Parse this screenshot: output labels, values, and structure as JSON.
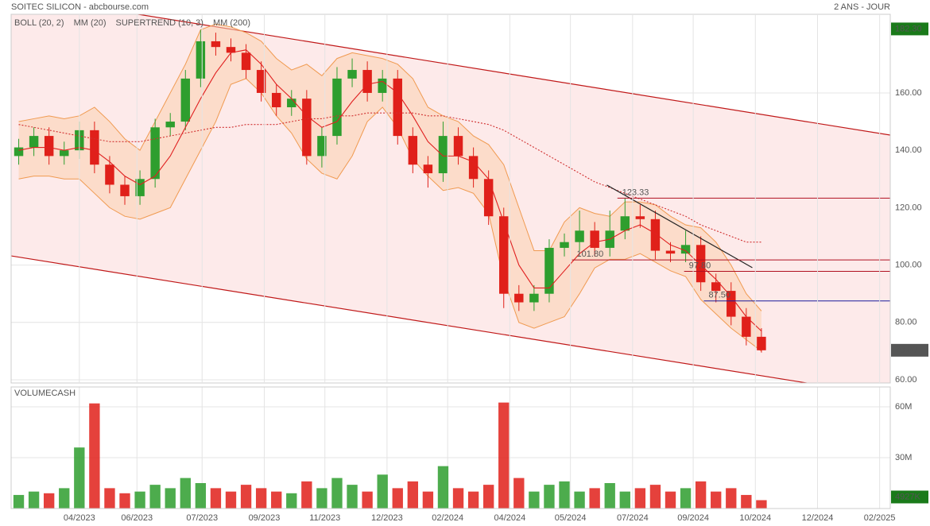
{
  "header": {
    "title": "SOITEC SILICON - abcbourse.com",
    "period": "2 ANS - JOUR"
  },
  "chart_data": [
    {
      "type": "candlestick",
      "up_color": "#2e9e2e",
      "down_color": "#e0201a",
      "x": [
        0,
        1,
        2,
        3,
        4,
        5,
        6,
        7,
        8,
        9,
        10,
        11,
        12,
        13,
        14,
        15,
        16,
        17,
        18,
        19,
        20,
        21,
        22,
        23,
        24,
        25,
        26,
        27,
        28,
        29,
        30,
        31,
        32,
        33,
        34,
        35,
        36,
        37,
        38,
        39,
        40,
        41,
        42,
        43,
        44,
        45,
        46,
        47,
        48,
        49
      ],
      "open": [
        138,
        141,
        145,
        138,
        140,
        147,
        135,
        128,
        124,
        130,
        148,
        150,
        165,
        178,
        176,
        174,
        168,
        160,
        155,
        158,
        138,
        145,
        165,
        168,
        160,
        165,
        145,
        135,
        132,
        145,
        138,
        130,
        117,
        90,
        87,
        90,
        106,
        108,
        112,
        106,
        112,
        117,
        116,
        105,
        104,
        107,
        94,
        91,
        82,
        75
      ],
      "high": [
        144,
        148,
        148,
        143,
        150,
        150,
        138,
        131,
        133,
        151,
        153,
        168,
        182,
        181,
        179,
        177,
        171,
        163,
        161,
        161,
        148,
        169,
        172,
        171,
        168,
        168,
        148,
        138,
        150,
        148,
        141,
        133,
        120,
        93,
        93,
        109,
        111,
        119,
        115,
        119,
        123.33,
        121,
        119,
        108,
        112,
        110,
        97,
        94,
        85,
        78
      ],
      "low": [
        135,
        138,
        135,
        135,
        137,
        132,
        125,
        121,
        121,
        127,
        145,
        147,
        162,
        173,
        171,
        165,
        157,
        152,
        152,
        135,
        134,
        142,
        162,
        157,
        157,
        142,
        132,
        127,
        129,
        135,
        127,
        114,
        85,
        84,
        84,
        87,
        103,
        105,
        103,
        103,
        109,
        113,
        102,
        101,
        101,
        91,
        87,
        79,
        72,
        69.5
      ],
      "close": [
        141,
        145,
        138,
        140,
        147,
        135,
        128,
        124,
        130,
        148,
        150,
        165,
        178,
        176,
        174,
        168,
        160,
        155,
        158,
        138,
        145,
        165,
        168,
        160,
        165,
        145,
        135,
        132,
        145,
        138,
        130,
        117,
        90,
        87,
        90,
        106,
        108,
        112,
        106,
        112,
        117,
        116,
        105,
        104,
        107,
        94,
        91,
        82,
        75,
        70.3
      ],
      "overlays": [
        {
          "name": "BOLL (20, 2)",
          "color": "#f09a50",
          "upper": [
            150,
            151,
            152,
            151,
            152,
            155,
            150,
            144,
            140,
            150,
            160,
            170,
            182,
            184,
            183,
            181,
            178,
            172,
            168,
            170,
            166,
            172,
            174,
            173,
            172,
            170,
            165,
            155,
            152,
            150,
            145,
            142,
            135,
            120,
            105,
            105,
            115,
            120,
            118,
            117,
            122,
            122,
            121,
            117,
            114,
            113,
            108,
            100,
            90,
            84
          ],
          "lower": [
            130,
            131,
            131,
            130,
            130,
            125,
            120,
            117,
            116,
            118,
            120,
            130,
            140,
            150,
            163,
            165,
            160,
            152,
            146,
            137,
            132,
            130,
            138,
            150,
            155,
            148,
            137,
            131,
            126,
            127,
            125,
            118,
            95,
            80,
            78,
            80,
            82,
            90,
            99,
            102,
            102,
            104,
            101,
            98,
            96,
            88,
            83,
            78,
            74,
            70
          ]
        },
        {
          "name": "MM (20)",
          "color": "#e02020",
          "values": [
            140,
            141,
            141,
            140,
            141,
            140,
            136,
            131,
            128,
            131,
            138,
            148,
            158,
            167,
            174,
            175,
            170,
            163,
            158,
            152,
            148,
            150,
            157,
            163,
            164,
            160,
            152,
            143,
            138,
            138,
            136,
            130,
            115,
            100,
            92,
            92,
            98,
            104,
            108,
            109,
            112,
            114,
            111,
            107,
            105,
            100,
            95,
            89,
            82,
            77
          ]
        },
        {
          "name": "SUPERTREND (10, 3)",
          "color": "#f4b8b0"
        },
        {
          "name": "MM (200)",
          "color": "#d03030",
          "dashed": true,
          "values": [
            149,
            148,
            147,
            146,
            145,
            144,
            143,
            143,
            143,
            144,
            145,
            146,
            147,
            148,
            148,
            149,
            149,
            149,
            150,
            151,
            151,
            152,
            152,
            153,
            153,
            153,
            153,
            152,
            152,
            151,
            150,
            149,
            147,
            144,
            141,
            138,
            135,
            132,
            129,
            127,
            125,
            123,
            121,
            119,
            117,
            114,
            112,
            110,
            108,
            108
          ]
        }
      ],
      "channel": {
        "color": "#c01818",
        "upper": [
          [
            8.47,
            186.9
          ],
          [
            57.5,
            145.3
          ]
        ],
        "lower": [
          [
            -0.5,
            103.2
          ],
          [
            52,
            58.9
          ]
        ]
      },
      "trendline": {
        "color": "#222222",
        "points": [
          [
            38.8,
            127.9
          ],
          [
            48.4,
            99.1
          ]
        ]
      },
      "levels": [
        {
          "value": 123.33,
          "label": "123.33",
          "from": 39.5,
          "color": "#b01020"
        },
        {
          "value": 101.8,
          "label": "101.80",
          "from": 36.5,
          "color": "#b01020"
        },
        {
          "value": 97.8,
          "label": "97.80",
          "from": 43.9,
          "color": "#b01020"
        },
        {
          "value": 87.5,
          "label": "87.50",
          "from": 45.2,
          "color": "#1a1a9a"
        }
      ],
      "price_tags": [
        {
          "value": 182.3,
          "label": "182.30",
          "color": "#1a7a1a"
        },
        {
          "value": 70.3,
          "label": "70.30",
          "color": "#555555"
        }
      ],
      "xlim": [
        -0.5,
        57.5
      ],
      "ylim": [
        58.9,
        187.4
      ],
      "yticks": [
        {
          "value": 60,
          "label": "60.00"
        },
        {
          "value": 80,
          "label": "80.00"
        },
        {
          "value": 100,
          "label": "100.00"
        },
        {
          "value": 120,
          "label": "120.00"
        },
        {
          "value": 140,
          "label": "140.00"
        },
        {
          "value": 160,
          "label": "160.00"
        }
      ],
      "xticks": [
        {
          "value": 4,
          "label": "04/2023"
        },
        {
          "value": 7.8,
          "label": "06/2023"
        },
        {
          "value": 12.1,
          "label": "07/2023"
        },
        {
          "value": 16.2,
          "label": "09/2023"
        },
        {
          "value": 20.2,
          "label": "11/2023"
        },
        {
          "value": 24.3,
          "label": "12/2023"
        },
        {
          "value": 28.3,
          "label": "02/2024"
        },
        {
          "value": 32.4,
          "label": "04/2024"
        },
        {
          "value": 36.4,
          "label": "05/2024"
        },
        {
          "value": 40.5,
          "label": "07/2024"
        },
        {
          "value": 44.5,
          "label": "09/2024"
        },
        {
          "value": 48.6,
          "label": "10/2024"
        },
        {
          "value": 52.7,
          "label": "12/2024"
        },
        {
          "value": 56.8,
          "label": "02/2025"
        }
      ]
    },
    {
      "type": "bar",
      "name": "VOLUMECASH",
      "name_color": "#2e9e2e",
      "x": [
        0,
        1,
        2,
        3,
        4,
        5,
        6,
        7,
        8,
        9,
        10,
        11,
        12,
        13,
        14,
        15,
        16,
        17,
        18,
        19,
        20,
        21,
        22,
        23,
        24,
        25,
        26,
        27,
        28,
        29,
        30,
        31,
        32,
        33,
        34,
        35,
        36,
        37,
        38,
        39,
        40,
        41,
        42,
        43,
        44,
        45,
        46,
        47,
        48,
        49
      ],
      "values": [
        8,
        10,
        9,
        12,
        36,
        62,
        12,
        9,
        10,
        14,
        12,
        18,
        15,
        12,
        10,
        14,
        12,
        10,
        9,
        16,
        12,
        18,
        14,
        10,
        20,
        12,
        16,
        10,
        25,
        12,
        10,
        14,
        62.5,
        18,
        10,
        14,
        16,
        10,
        12,
        15,
        10,
        12,
        14,
        10,
        12,
        16,
        10,
        12,
        8,
        4.927
      ],
      "last_tag": {
        "value": 4.927,
        "label": "4927K",
        "color": "#1a7a1a"
      },
      "xlim": [
        -0.5,
        57.5
      ],
      "ylim": [
        0,
        71.7
      ],
      "yticks": [
        {
          "value": 30,
          "label": "30M"
        },
        {
          "value": 60,
          "label": "60M"
        }
      ]
    }
  ]
}
